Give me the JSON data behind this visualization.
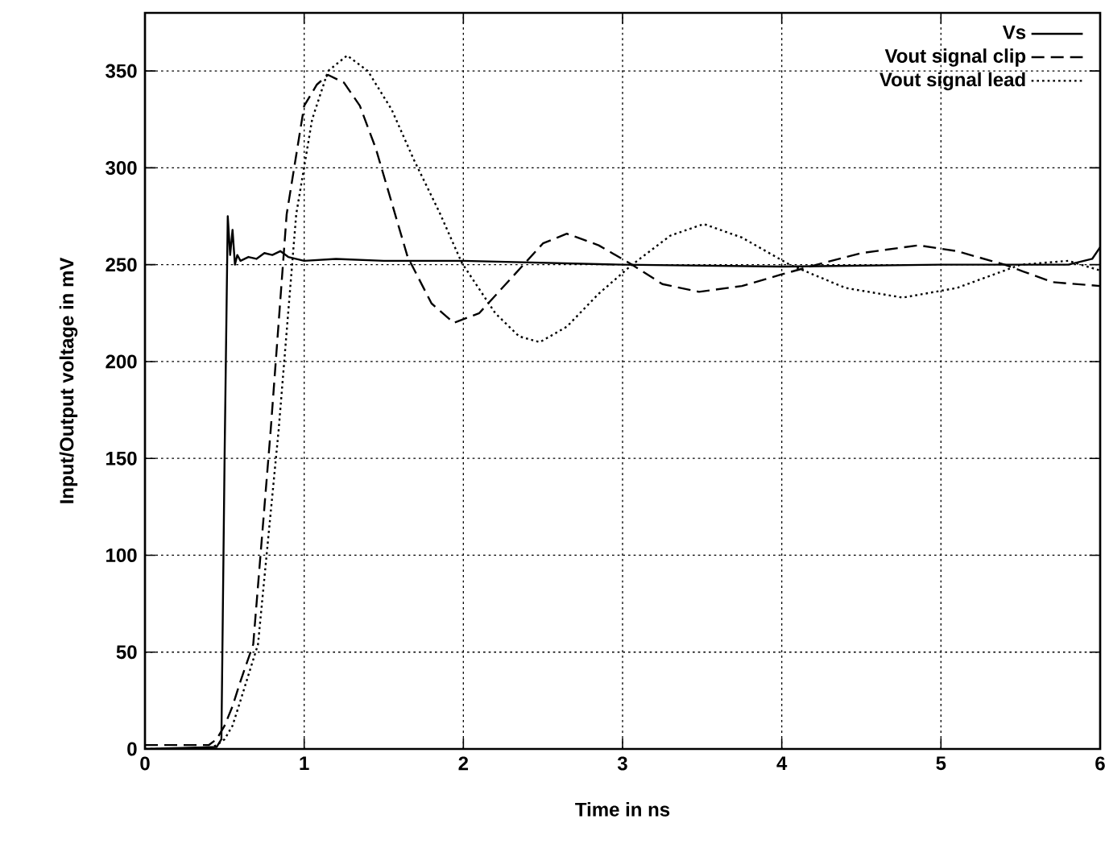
{
  "chart_data": {
    "type": "line",
    "xlabel": "Time in ns",
    "ylabel": "Input/Output voltage in mV",
    "xlim": [
      0,
      6
    ],
    "ylim": [
      0,
      380
    ],
    "xticks": [
      0,
      1,
      2,
      3,
      4,
      5,
      6
    ],
    "yticks": [
      0,
      50,
      100,
      150,
      200,
      250,
      300,
      350
    ],
    "grid": true,
    "legend": "top right",
    "marker": "none",
    "series": [
      {
        "name": "Vs",
        "color": "#000000",
        "line_style": "solid",
        "x": [
          0,
          0.45,
          0.48,
          0.5,
          0.52,
          0.535,
          0.55,
          0.565,
          0.58,
          0.6,
          0.65,
          0.7,
          0.75,
          0.8,
          0.85,
          0.9,
          1.0,
          1.2,
          1.5,
          2,
          3,
          4,
          5,
          5.8,
          5.95,
          6
        ],
        "values": [
          0,
          1,
          5,
          150,
          275,
          255,
          268,
          250,
          255,
          252,
          254,
          253,
          256,
          255,
          257,
          254,
          252,
          253,
          252,
          252,
          250,
          249,
          250,
          250,
          253,
          259
        ]
      },
      {
        "name": "Vout signal clip",
        "color": "#000000",
        "line_style": "dashed",
        "x": [
          0,
          0.4,
          0.45,
          0.5,
          0.55,
          0.6,
          0.68,
          0.79,
          0.89,
          1.0,
          1.08,
          1.15,
          1.25,
          1.35,
          1.45,
          1.55,
          1.65,
          1.8,
          1.94,
          2.1,
          2.3,
          2.5,
          2.65,
          2.85,
          3.06,
          3.25,
          3.48,
          3.75,
          4.0,
          4.22,
          4.5,
          4.86,
          5.1,
          5.4,
          5.7,
          6
        ],
        "values": [
          2,
          2,
          5,
          12,
          22,
          35,
          54,
          165,
          276,
          332,
          343,
          348,
          344,
          332,
          310,
          282,
          254,
          230,
          220,
          225,
          243,
          261,
          266,
          260,
          250,
          240,
          236,
          239,
          245,
          250,
          256,
          260,
          257,
          250,
          241,
          239
        ]
      },
      {
        "name": "Vout signal lead",
        "color": "#000000",
        "line_style": "dotted",
        "x": [
          0,
          0.4,
          0.45,
          0.5,
          0.55,
          0.6,
          0.71,
          0.84,
          0.95,
          1.05,
          1.15,
          1.27,
          1.4,
          1.55,
          1.69,
          1.85,
          1.99,
          2.2,
          2.35,
          2.48,
          2.65,
          2.85,
          3.06,
          3.3,
          3.51,
          3.75,
          4.05,
          4.4,
          4.76,
          5.1,
          5.5,
          5.8,
          6
        ],
        "values": [
          0,
          0,
          2,
          5,
          12,
          25,
          54,
          165,
          276,
          325,
          350,
          358,
          350,
          330,
          304,
          277,
          251,
          225,
          213,
          210,
          218,
          235,
          250,
          265,
          271,
          264,
          250,
          238,
          233,
          238,
          250,
          252,
          247
        ]
      }
    ]
  }
}
